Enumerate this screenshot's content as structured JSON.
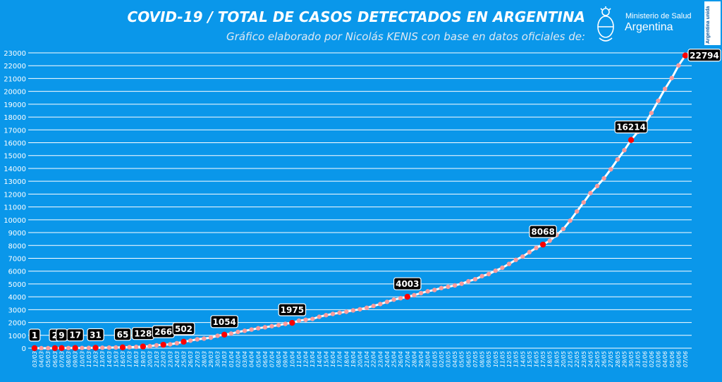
{
  "header": {
    "title": "COVID-19  /  TOTAL DE CASOS DETECTADOS EN ARGENTINA",
    "subtitle": "Gráfico elaborado por Nicolás KENIS con base en datos oficiales de:",
    "logo_line1": "Ministerio de Salud",
    "logo_line2": "Argentina",
    "side_badge": "Argentina unida"
  },
  "colors": {
    "background": "#0a97ea",
    "grid": "#ffffff",
    "line": "#ffffff",
    "marker": "#ff9c9c",
    "highlight": "#ff0000",
    "label_box": "#000000",
    "label_text": "#ffffff"
  },
  "chart_data": {
    "type": "line",
    "title": "COVID-19  /  TOTAL DE CASOS DETECTADOS EN ARGENTINA",
    "xlabel": "",
    "ylabel": "",
    "ylim": [
      0,
      23000
    ],
    "yticks": [
      0,
      1000,
      2000,
      3000,
      4000,
      5000,
      6000,
      7000,
      8000,
      9000,
      10000,
      11000,
      12000,
      13000,
      14000,
      15000,
      16000,
      17000,
      18000,
      19000,
      20000,
      21000,
      22000,
      23000
    ],
    "grid": true,
    "x": [
      "03/03",
      "04/03",
      "05/03",
      "06/03",
      "07/03",
      "08/03",
      "09/03",
      "10/03",
      "11/03",
      "12/03",
      "13/03",
      "14/03",
      "15/03",
      "16/03",
      "17/03",
      "18/03",
      "19/03",
      "20/03",
      "21/03",
      "22/03",
      "23/03",
      "24/03",
      "25/03",
      "26/03",
      "27/03",
      "28/03",
      "29/03",
      "30/03",
      "31/03",
      "01/04",
      "02/04",
      "03/04",
      "04/04",
      "05/04",
      "06/04",
      "07/04",
      "08/04",
      "09/04",
      "10/04",
      "11/04",
      "12/04",
      "13/04",
      "14/04",
      "15/04",
      "16/04",
      "17/04",
      "18/04",
      "19/04",
      "20/04",
      "21/04",
      "22/04",
      "23/04",
      "24/04",
      "25/04",
      "26/04",
      "27/04",
      "28/04",
      "29/04",
      "30/04",
      "01/05",
      "02/05",
      "03/05",
      "04/05",
      "05/05",
      "06/05",
      "07/05",
      "08/05",
      "09/05",
      "10/05",
      "11/05",
      "12/05",
      "13/05",
      "14/05",
      "15/05",
      "16/05",
      "17/05",
      "18/05",
      "19/05",
      "20/05",
      "21/05",
      "22/05",
      "23/05",
      "24/05",
      "25/05",
      "26/05",
      "27/05",
      "28/05",
      "29/05",
      "30/05",
      "31/05",
      "01/06",
      "02/06",
      "03/06",
      "04/06",
      "05/06",
      "06/06",
      "07/06"
    ],
    "series": [
      {
        "values": [
          1,
          1,
          1,
          2,
          9,
          12,
          17,
          19,
          21,
          31,
          34,
          45,
          56,
          65,
          79,
          97,
          128,
          158,
          225,
          266,
          301,
          387,
          502,
          589,
          690,
          745,
          820,
          966,
          1054,
          1133,
          1265,
          1353,
          1451,
          1554,
          1628,
          1715,
          1795,
          1894,
          1975,
          2142,
          2208,
          2277,
          2443,
          2571,
          2669,
          2758,
          2839,
          2941,
          3031,
          3144,
          3288,
          3435,
          3607,
          3780,
          3892,
          4003,
          4127,
          4285,
          4428,
          4532,
          4681,
          4783,
          4887,
          5020,
          5208,
          5371,
          5611,
          5776,
          6034,
          6265,
          6563,
          6879,
          7134,
          7479,
          7805,
          8068,
          8371,
          8809,
          9283,
          9931,
          10649,
          11353,
          12076,
          12628,
          13228,
          13933,
          14702,
          15419,
          16214,
          16851,
          17415,
          18319,
          19268,
          20197,
          21037,
          22020,
          22794
        ]
      }
    ],
    "annotations": [
      {
        "x": "03/03",
        "label": "1"
      },
      {
        "x": "06/03",
        "label": "2"
      },
      {
        "x": "07/03",
        "label": "9"
      },
      {
        "x": "09/03",
        "label": "17"
      },
      {
        "x": "12/03",
        "label": "31"
      },
      {
        "x": "16/03",
        "label": "65"
      },
      {
        "x": "19/03",
        "label": "128"
      },
      {
        "x": "22/03",
        "label": "266"
      },
      {
        "x": "25/03",
        "label": "502"
      },
      {
        "x": "31/03",
        "label": "1054"
      },
      {
        "x": "10/04",
        "label": "1975"
      },
      {
        "x": "27/04",
        "label": "4003"
      },
      {
        "x": "17/05",
        "label": "8068"
      },
      {
        "x": "30/05",
        "label": "16214"
      },
      {
        "x": "07/06",
        "label": "22794"
      }
    ]
  }
}
